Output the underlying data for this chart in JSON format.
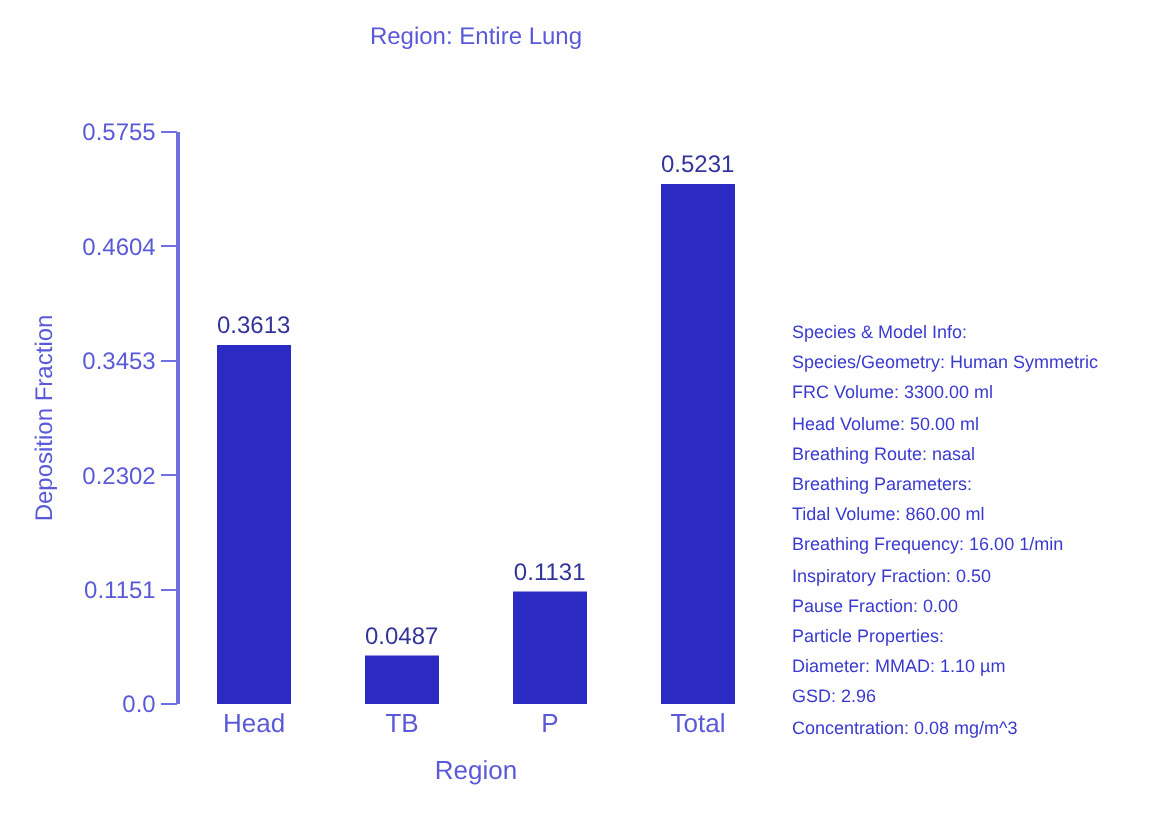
{
  "chart_data": {
    "type": "bar",
    "title": "Region: Entire Lung",
    "xlabel": "Region",
    "ylabel": "Deposition Fraction",
    "categories": [
      "Head",
      "TB",
      "P",
      "Total"
    ],
    "values": [
      0.3613,
      0.0487,
      0.1131,
      0.5231
    ],
    "color": "#2b2bc4",
    "ylim": [
      0,
      0.5755
    ],
    "yticks": [
      {
        "value": 0,
        "label": "0.0"
      },
      0.1151,
      0.2302,
      0.3453,
      0.4604,
      0.5755
    ],
    "data_labels": true,
    "annotations": [
      "Species & Model Info:",
      "Species/Geometry: Human Symmetric",
      "FRC Volume: 3300.00 ml",
      "Head Volume: 50.00 ml",
      "Breathing Route: nasal",
      "Breathing Parameters:",
      "Tidal Volume: 860.00 ml",
      "Breathing Frequency: 16.00 1/min",
      "Inspiratory Fraction: 0.50",
      "Pause Fraction: 0.00",
      "Particle Properties:",
      "Diameter: MMAD: 1.10 µm",
      "GSD: 2.96",
      "Concentration: 0.08 mg/m^3"
    ]
  }
}
